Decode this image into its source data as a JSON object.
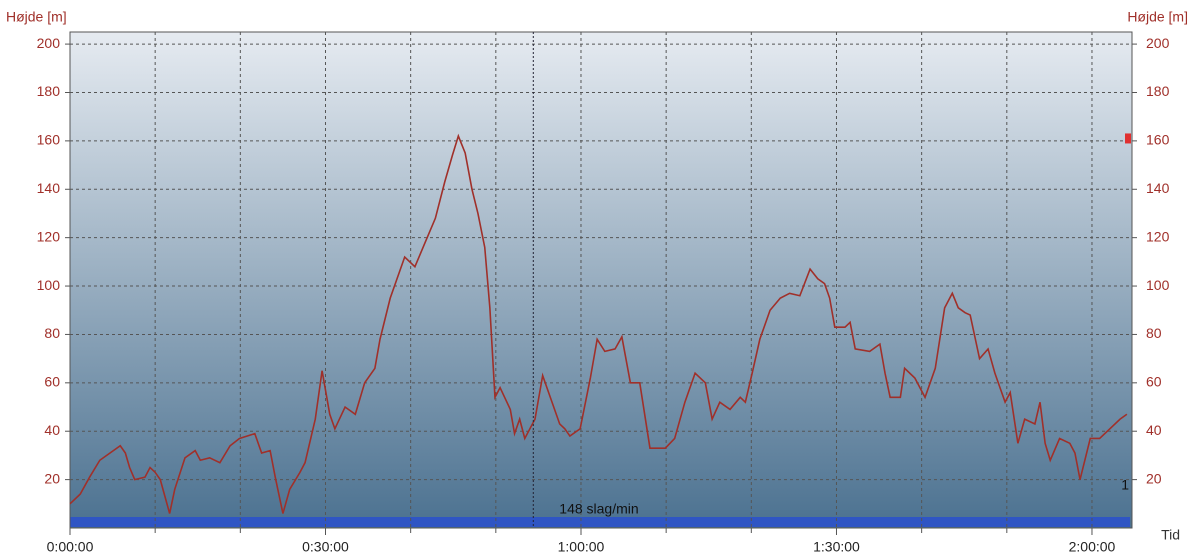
{
  "chart_data": {
    "type": "line",
    "y_label": "Højde [m]",
    "x_label": "Tid",
    "x": [
      0.0,
      1.2,
      2.3,
      3.5,
      4.7,
      5.9,
      6.5,
      7.0,
      7.6,
      8.8,
      9.4,
      10.0,
      10.6,
      11.7,
      12.3,
      13.5,
      14.7,
      15.3,
      16.4,
      17.6,
      18.8,
      19.9,
      21.7,
      22.5,
      23.5,
      24.1,
      25.0,
      25.8,
      27.0,
      27.6,
      28.8,
      29.6,
      30.5,
      31.1,
      32.3,
      33.5,
      34.6,
      35.8,
      36.4,
      37.6,
      38.4,
      39.3,
      40.5,
      41.7,
      42.9,
      44.0,
      44.9,
      45.6,
      46.4,
      47.2,
      47.9,
      48.7,
      49.3,
      49.9,
      50.5,
      51.7,
      52.2,
      52.8,
      53.4,
      54.6,
      55.5,
      56.4,
      57.5,
      58.1,
      58.7,
      59.9,
      61.1,
      61.9,
      62.8,
      64.0,
      64.8,
      65.8,
      66.9,
      68.1,
      69.9,
      71.0,
      72.2,
      73.4,
      74.6,
      75.4,
      76.3,
      77.5,
      78.7,
      79.3,
      80.1,
      81.0,
      82.2,
      83.4,
      84.5,
      85.7,
      86.9,
      87.8,
      88.6,
      89.2,
      89.8,
      91.0,
      91.6,
      92.2,
      93.9,
      95.1,
      95.7,
      96.3,
      97.5,
      98.0,
      99.2,
      100.4,
      101.6,
      102.7,
      103.6,
      104.3,
      105.1,
      105.7,
      106.8,
      107.8,
      108.6,
      109.8,
      110.4,
      111.3,
      112.1,
      113.3,
      113.9,
      114.5,
      115.1,
      116.2,
      117.4,
      118.0,
      118.6,
      119.8,
      120.9,
      122.1,
      123.3,
      124.1
    ],
    "series": [
      {
        "color": "#a0302a",
        "values": [
          10,
          14,
          21,
          28,
          31,
          34,
          31,
          25,
          20,
          21,
          25,
          23,
          20,
          6,
          16,
          29,
          32,
          28,
          29,
          27,
          34,
          37,
          39,
          31,
          32,
          21,
          6,
          16,
          23,
          27,
          45,
          65,
          47,
          41,
          50,
          47,
          60,
          66,
          78,
          95,
          103,
          112,
          108,
          118,
          128,
          143,
          154,
          162,
          155,
          140,
          130,
          116,
          91,
          54,
          58,
          49,
          39,
          45,
          37,
          45,
          63,
          54,
          43,
          41,
          38,
          41,
          62,
          78,
          73,
          74,
          79,
          60,
          60,
          33,
          33,
          37,
          52,
          64,
          60,
          45,
          52,
          49,
          54,
          52,
          64,
          78,
          90,
          95,
          97,
          96,
          107,
          103,
          101,
          95,
          83,
          83,
          85,
          74,
          73,
          76,
          64,
          54,
          54,
          66,
          62,
          54,
          66,
          91,
          97,
          91,
          89,
          88,
          70,
          74,
          64,
          52,
          56,
          35,
          45,
          43,
          52,
          35,
          28,
          37,
          35,
          31,
          20,
          37,
          37,
          41,
          45,
          47
        ]
      }
    ],
    "xlim": [
      0,
      124.7
    ],
    "xticks": [
      {
        "value": 0,
        "label": "0:00:00"
      },
      {
        "value": 30,
        "label": "0:30:00"
      },
      {
        "value": 60,
        "label": "1:00:00"
      },
      {
        "value": 90,
        "label": "1:30:00"
      },
      {
        "value": 120,
        "label": "2:00:00"
      }
    ],
    "xminorticks": [
      10,
      20,
      40,
      50,
      70,
      80,
      100,
      110
    ],
    "ylim": [
      0,
      205
    ],
    "yticks": [
      20,
      40,
      60,
      80,
      100,
      120,
      140,
      160,
      180,
      200
    ],
    "grid": true,
    "cursor": {
      "x": 54.4,
      "text": "148 slag/min"
    },
    "marker": {
      "y": 161,
      "text": "1"
    }
  }
}
